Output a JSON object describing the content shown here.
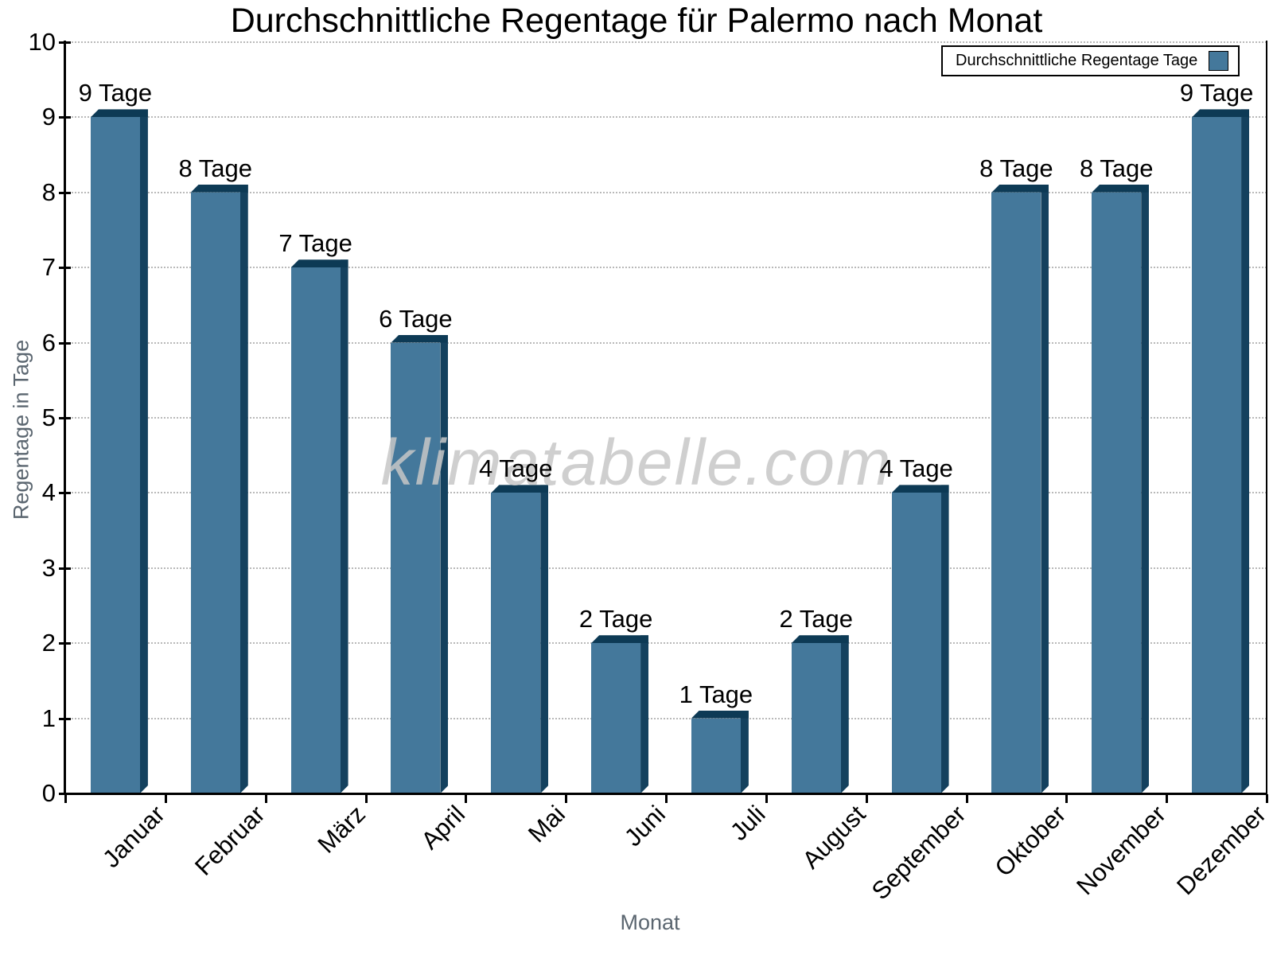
{
  "chart_data": {
    "type": "bar",
    "title": "Durchschnittliche Regentage für Palermo nach Monat",
    "xlabel": "Monat",
    "ylabel": "Regentage in Tage",
    "watermark": "klimatabelle.com",
    "categories": [
      "Januar",
      "Februar",
      "März",
      "April",
      "Mai",
      "Juni",
      "Juli",
      "August",
      "September",
      "Oktober",
      "November",
      "Dezember"
    ],
    "values": [
      9,
      8,
      7,
      6,
      4,
      2,
      1,
      2,
      4,
      8,
      8,
      9
    ],
    "bar_labels": [
      "9 Tage",
      "8 Tage",
      "7 Tage",
      "6 Tage",
      "4 Tage",
      "2 Tage",
      "1 Tage",
      "2 Tage",
      "4 Tage",
      "8 Tage",
      "8 Tage",
      "9 Tage"
    ],
    "ylim": [
      0,
      10
    ],
    "ytick_labels": [
      "0",
      "1",
      "2",
      "3",
      "4",
      "5",
      "6",
      "7",
      "8",
      "9",
      "10"
    ],
    "grid": "horizontal-dotted",
    "legend": {
      "label": "Durchschnittliche Regentage Tage",
      "position": "top-right"
    },
    "colors": {
      "background": "#ffffff",
      "bar_face": "#44789B",
      "bar_side": "#14415E",
      "bar_top": "#0D3A55",
      "grid": "#b9b9b9",
      "axis": "#000000",
      "axis_title": "#5B6670",
      "watermark": "#c7c7c7",
      "legend_border": "#000000"
    }
  }
}
